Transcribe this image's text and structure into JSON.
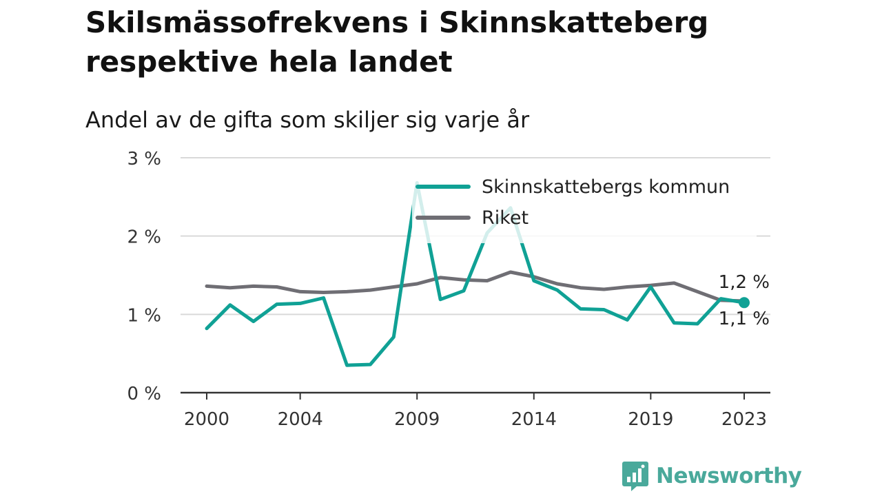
{
  "chart_data": {
    "type": "line",
    "title": "Skilsmässofrekvens i Skinnskatteberg respektive hela landet",
    "subtitle": "Andel av de gifta som skiljer sig varje år",
    "xlabel": "",
    "ylabel": "",
    "x": [
      2000,
      2001,
      2002,
      2003,
      2004,
      2005,
      2006,
      2007,
      2008,
      2009,
      2010,
      2011,
      2012,
      2013,
      2014,
      2015,
      2016,
      2017,
      2018,
      2019,
      2020,
      2021,
      2022,
      2023
    ],
    "x_tick_labels": [
      "2000",
      "2004",
      "2009",
      "2014",
      "2019",
      "2023"
    ],
    "x_ticks": [
      2000,
      2004,
      2009,
      2014,
      2019,
      2023
    ],
    "xlim": [
      2000,
      2023
    ],
    "y_ticks": [
      0,
      1,
      2,
      3
    ],
    "y_tick_labels": [
      "0 %",
      "1 %",
      "2 %",
      "3 %"
    ],
    "ylim": [
      0,
      3
    ],
    "grid": true,
    "legend_position": "top-right",
    "series": [
      {
        "name": "Skinnskattebergs kommun",
        "color": "#10a195",
        "values": [
          0.82,
          1.12,
          0.91,
          1.13,
          1.14,
          1.21,
          0.35,
          0.36,
          0.71,
          2.68,
          1.19,
          1.3,
          2.04,
          2.36,
          1.43,
          1.31,
          1.07,
          1.06,
          0.93,
          1.35,
          0.89,
          0.88,
          1.2,
          1.15
        ],
        "end_label": "1,1 %"
      },
      {
        "name": "Riket",
        "color": "#6f6e74",
        "values": [
          1.36,
          1.34,
          1.36,
          1.35,
          1.29,
          1.28,
          1.29,
          1.31,
          1.35,
          1.39,
          1.47,
          1.44,
          1.43,
          1.54,
          1.48,
          1.39,
          1.34,
          1.32,
          1.35,
          1.37,
          1.4,
          1.29,
          1.18,
          1.17
        ],
        "end_label": "1,2 %"
      }
    ]
  },
  "brand": {
    "name": "Newsworthy",
    "icon": "newsworthy-logo-icon",
    "color": "#4aa99b"
  }
}
